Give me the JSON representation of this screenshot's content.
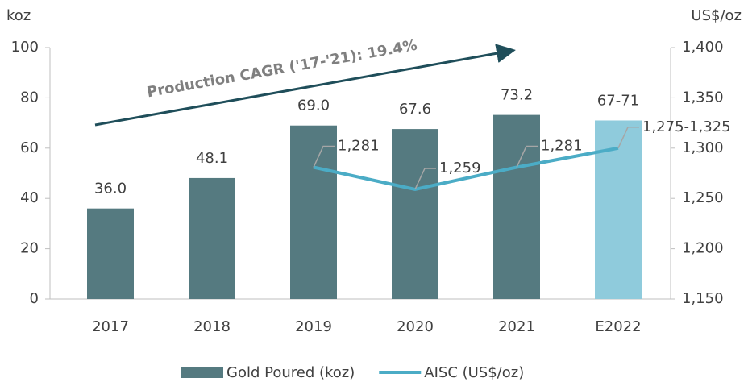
{
  "chart_data": {
    "type": "bar_line",
    "annotation": "Production CAGR ('17-'21): 19.4%",
    "y_label": "koz",
    "y2_label": "US$/oz",
    "categories": [
      "2017",
      "2018",
      "2019",
      "2020",
      "2021",
      "E2022"
    ],
    "series": [
      {
        "name": "Gold Poured (koz)",
        "type": "bar",
        "color": "#557a80",
        "colors": [
          "#557a80",
          "#557a80",
          "#557a80",
          "#557a80",
          "#557a80",
          "#8fcbdc"
        ],
        "values": [
          36.0,
          48.1,
          69.0,
          67.6,
          73.2,
          71
        ],
        "value_labels": [
          "36.0",
          "48.1",
          "69.0",
          "67.6",
          "73.2",
          "67-71"
        ]
      },
      {
        "name": "AISC (US$/oz)",
        "type": "line",
        "axis": "y2",
        "color": "#4bacc6",
        "values": [
          null,
          null,
          1281,
          1259,
          1281,
          1300
        ],
        "value_labels": [
          null,
          null,
          "1,281",
          "1,259",
          "1,281",
          "1,275-1,325"
        ]
      }
    ],
    "ylim": [
      0,
      100
    ],
    "yticks": [
      0,
      20,
      40,
      60,
      80,
      100
    ],
    "y2lim": [
      1150,
      1400
    ],
    "y2ticks": [
      {
        "value": 1150,
        "label": "1,150"
      },
      {
        "value": 1200,
        "label": "1,200"
      },
      {
        "value": 1250,
        "label": "1,250"
      },
      {
        "value": 1300,
        "label": "1,300"
      },
      {
        "value": 1350,
        "label": "1,350"
      },
      {
        "value": 1400,
        "label": "1,400"
      }
    ],
    "grid": false,
    "legend": "bottom"
  }
}
